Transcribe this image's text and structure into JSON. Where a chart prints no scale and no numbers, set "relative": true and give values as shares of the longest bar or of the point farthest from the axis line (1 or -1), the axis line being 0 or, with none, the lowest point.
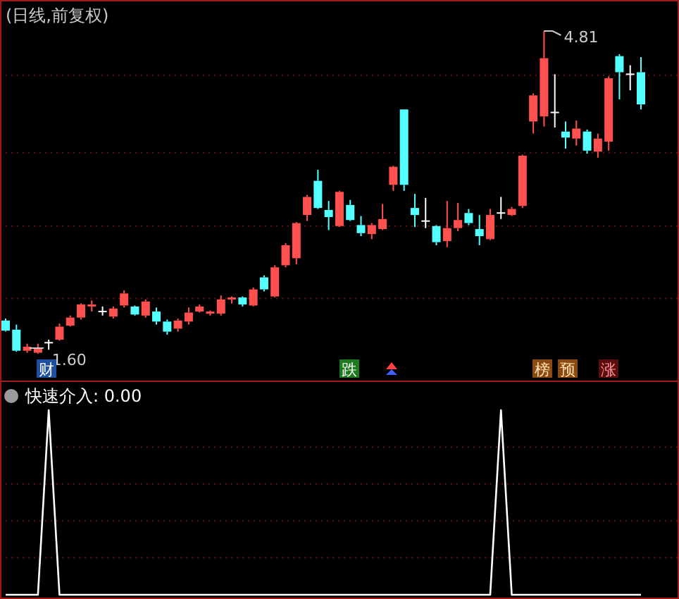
{
  "chart_data": [
    {
      "type": "candlestick",
      "title": "(日线,前复权)",
      "ref_lines": [
        {
          "axis": "y",
          "value": 4.37,
          "color": "#6a1010",
          "line_style": "dotted"
        },
        {
          "axis": "y",
          "value": 3.6,
          "color": "#6a1010",
          "line_style": "dotted"
        },
        {
          "axis": "y",
          "value": 2.87,
          "color": "#6a1010",
          "line_style": "dotted"
        },
        {
          "axis": "y",
          "value": 2.15,
          "color": "#6a1010",
          "line_style": "dotted"
        }
      ],
      "categories": [
        null,
        null,
        null,
        null,
        null,
        null,
        null,
        null,
        null,
        null,
        null,
        null,
        null,
        null,
        null,
        null,
        null,
        null,
        null,
        null,
        null,
        null,
        null,
        null,
        null,
        null,
        null,
        null,
        null,
        null,
        null,
        null,
        null,
        null,
        null,
        null,
        null,
        null,
        null,
        null,
        null,
        null,
        null,
        null,
        null,
        null,
        null,
        null,
        null,
        null,
        null,
        null,
        null,
        null,
        null,
        null,
        null,
        null,
        null,
        null
      ],
      "ohlc": [
        [
          1.93,
          1.95,
          1.82,
          1.83
        ],
        [
          1.84,
          1.89,
          1.62,
          1.63
        ],
        [
          1.63,
          1.7,
          1.61,
          1.67
        ],
        [
          1.61,
          1.7,
          1.6,
          1.65
        ],
        [
          1.71,
          1.74,
          1.64,
          1.71
        ],
        [
          1.74,
          1.9,
          1.73,
          1.87
        ],
        [
          1.88,
          1.98,
          1.87,
          1.96
        ],
        [
          1.96,
          2.1,
          1.94,
          2.09
        ],
        [
          2.07,
          2.13,
          2.02,
          2.09
        ],
        [
          2.02,
          2.07,
          1.98,
          2.02
        ],
        [
          1.97,
          2.07,
          1.95,
          2.05
        ],
        [
          2.08,
          2.23,
          2.06,
          2.2
        ],
        [
          2.07,
          2.08,
          1.98,
          1.99
        ],
        [
          1.98,
          2.14,
          1.96,
          2.12
        ],
        [
          2.02,
          2.06,
          1.89,
          1.92
        ],
        [
          1.92,
          1.94,
          1.79,
          1.82
        ],
        [
          1.85,
          1.95,
          1.82,
          1.93
        ],
        [
          1.92,
          2.06,
          1.89,
          2.01
        ],
        [
          2.02,
          2.09,
          2.01,
          2.07
        ],
        [
          2.0,
          2.03,
          1.98,
          2.02
        ],
        [
          2.0,
          2.18,
          1.98,
          2.14
        ],
        [
          2.14,
          2.17,
          2.1,
          2.16
        ],
        [
          2.16,
          2.17,
          2.07,
          2.09
        ],
        [
          2.08,
          2.26,
          2.07,
          2.24
        ],
        [
          2.36,
          2.38,
          2.22,
          2.24
        ],
        [
          2.17,
          2.48,
          2.16,
          2.46
        ],
        [
          2.48,
          2.7,
          2.46,
          2.68
        ],
        [
          2.55,
          2.91,
          2.49,
          2.9
        ],
        [
          2.98,
          3.18,
          2.92,
          3.16
        ],
        [
          3.32,
          3.43,
          3.04,
          3.05
        ],
        [
          3.03,
          3.12,
          2.83,
          2.96
        ],
        [
          2.87,
          3.22,
          2.86,
          3.21
        ],
        [
          3.08,
          3.13,
          2.92,
          2.93
        ],
        [
          2.88,
          2.97,
          2.77,
          2.8
        ],
        [
          2.79,
          2.9,
          2.74,
          2.88
        ],
        [
          2.84,
          3.09,
          2.83,
          2.94
        ],
        [
          3.28,
          3.47,
          3.22,
          3.46
        ],
        [
          4.03,
          4.03,
          3.22,
          3.28
        ],
        [
          3.05,
          3.19,
          2.86,
          2.98
        ],
        [
          2.92,
          3.15,
          2.85,
          2.92
        ],
        [
          2.87,
          2.88,
          2.68,
          2.71
        ],
        [
          2.72,
          3.12,
          2.66,
          2.85
        ],
        [
          2.85,
          3.1,
          2.82,
          2.93
        ],
        [
          3.0,
          3.04,
          2.88,
          2.9
        ],
        [
          2.84,
          2.98,
          2.68,
          2.77
        ],
        [
          2.74,
          3.04,
          2.73,
          2.98
        ],
        [
          3.0,
          3.16,
          2.94,
          3.0
        ],
        [
          2.98,
          3.06,
          2.97,
          3.04
        ],
        [
          3.07,
          3.58,
          3.05,
          3.57
        ],
        [
          3.91,
          4.19,
          3.79,
          4.17
        ],
        [
          3.96,
          4.81,
          3.86,
          4.54
        ],
        [
          4.0,
          4.38,
          3.85,
          4.0
        ],
        [
          3.81,
          3.91,
          3.64,
          3.75
        ],
        [
          3.74,
          3.92,
          3.67,
          3.84
        ],
        [
          3.81,
          3.83,
          3.59,
          3.62
        ],
        [
          3.61,
          3.79,
          3.55,
          3.74
        ],
        [
          3.71,
          4.36,
          3.62,
          4.34
        ],
        [
          4.56,
          4.58,
          4.13,
          4.4
        ],
        [
          4.38,
          4.47,
          4.22,
          4.38
        ],
        [
          4.4,
          4.55,
          4.03,
          4.08
        ]
      ],
      "annotations": [
        "4.81",
        "1.60",
        "财",
        "跌",
        "榜",
        "预",
        "涨"
      ]
    },
    {
      "type": "line",
      "relative": true,
      "ref_lines": [
        {
          "axis": "y",
          "value": 0.2,
          "color": "#6a1010",
          "line_style": "dotted"
        },
        {
          "axis": "y",
          "value": 0.4,
          "color": "#6a1010",
          "line_style": "dotted"
        },
        {
          "axis": "y",
          "value": 0.6,
          "color": "#6a1010",
          "line_style": "dotted"
        },
        {
          "axis": "y",
          "value": 0.8,
          "color": "#6a1010",
          "line_style": "dotted"
        }
      ],
      "categories": [
        null,
        null,
        null,
        null,
        null,
        null,
        null,
        null,
        null,
        null,
        null,
        null,
        null,
        null,
        null,
        null,
        null,
        null,
        null,
        null,
        null,
        null,
        null,
        null,
        null,
        null,
        null,
        null,
        null,
        null,
        null,
        null,
        null,
        null,
        null,
        null,
        null,
        null,
        null,
        null,
        null,
        null,
        null,
        null,
        null,
        null,
        null,
        null,
        null,
        null,
        null,
        null,
        null,
        null,
        null,
        null,
        null,
        null,
        null,
        null
      ],
      "series": [
        {
          "name": "快速介入: 0.00",
          "color": "#ffffff",
          "values": [
            0,
            0,
            0,
            0,
            1,
            0,
            0,
            0,
            0,
            0,
            0,
            0,
            0,
            0,
            0,
            0,
            0,
            0,
            0,
            0,
            0,
            0,
            0,
            0,
            0,
            0,
            0,
            0,
            0,
            0,
            0,
            0,
            0,
            0,
            0,
            0,
            0,
            0,
            0,
            0,
            0,
            0,
            0,
            0,
            0,
            0,
            1,
            0,
            0,
            0,
            0,
            0,
            0,
            0,
            0,
            0,
            0,
            0,
            0,
            0
          ]
        }
      ]
    }
  ]
}
